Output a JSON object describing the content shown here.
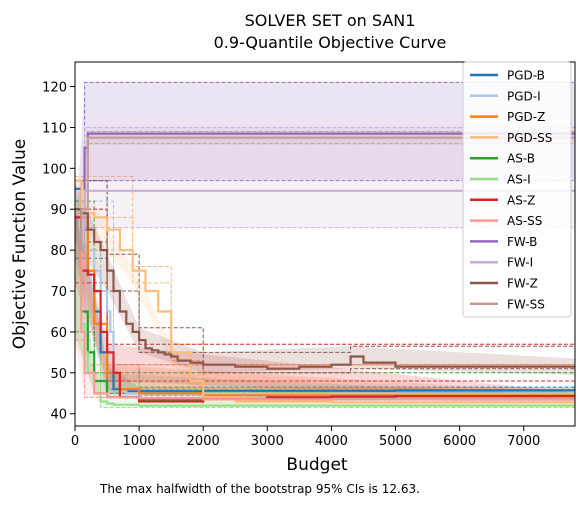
{
  "chart_data": {
    "type": "line",
    "title_line1": "SOLVER SET on SAN1",
    "title_line2": "0.9-Quantile Objective Curve",
    "xlabel": "Budget",
    "ylabel": "Objective Function Value",
    "xlim": [
      0,
      7800
    ],
    "ylim": [
      37,
      126
    ],
    "xticks": [
      0,
      1000,
      2000,
      3000,
      4000,
      5000,
      6000,
      7000
    ],
    "yticks": [
      40,
      50,
      60,
      70,
      80,
      90,
      100,
      110,
      120
    ],
    "grid": false,
    "legend_position": "top-right",
    "footnote": "The max halfwidth of the bootstrap 95% CIs is 12.63.",
    "series": [
      {
        "name": "PGD-B",
        "color": "#1f77b4",
        "x": [
          0,
          100,
          200,
          300,
          400,
          500,
          600,
          800,
          1000,
          2000,
          3000,
          5000,
          7800
        ],
        "y": [
          95,
          85,
          75,
          65,
          55,
          50,
          46,
          45.5,
          45.5,
          45.6,
          45.6,
          45.7,
          45.7
        ],
        "band": [
          [
            0,
            97,
            78
          ],
          [
            500,
            52,
            44
          ],
          [
            1000,
            46.5,
            44.5
          ],
          [
            7800,
            46.5,
            44.8
          ]
        ]
      },
      {
        "name": "PGD-I",
        "color": "#aec7e8",
        "x": [
          0,
          200,
          300,
          400,
          500,
          550,
          600,
          700,
          800,
          1000,
          2000,
          4000,
          7800
        ],
        "y": [
          90,
          80,
          75,
          70,
          65,
          60,
          50,
          46,
          45,
          44.8,
          44.8,
          44.9,
          45
        ],
        "band": [
          [
            0,
            92,
            80
          ],
          [
            600,
            52,
            45
          ],
          [
            1000,
            46,
            43.5
          ],
          [
            7800,
            46,
            44
          ]
        ]
      },
      {
        "name": "PGD-Z",
        "color": "#ff7f0e",
        "x": [
          0,
          200,
          300,
          500,
          700,
          1000,
          2000,
          4000,
          7800
        ],
        "y": [
          88,
          75,
          62,
          50,
          46,
          45,
          44.5,
          44.5,
          44.5
        ],
        "band": [
          [
            0,
            90,
            80
          ],
          [
            500,
            52,
            46
          ],
          [
            7800,
            45.2,
            43.8
          ]
        ]
      },
      {
        "name": "PGD-SS",
        "color": "#ffbb78",
        "x": [
          0,
          100,
          200,
          300,
          500,
          700,
          900,
          1100,
          1300,
          1500,
          1800,
          2000,
          2500,
          4000,
          7800
        ],
        "y": [
          97,
          90,
          89,
          88,
          85,
          80,
          75,
          70,
          65,
          55,
          48,
          44,
          43,
          42.8,
          42.8
        ],
        "band": [
          [
            0,
            98,
            88
          ],
          [
            900,
            76,
            72
          ],
          [
            1500,
            57,
            53
          ],
          [
            2000,
            46,
            42
          ],
          [
            7800,
            43.5,
            42
          ]
        ]
      },
      {
        "name": "AS-B",
        "color": "#2ca02c",
        "x": [
          0,
          100,
          200,
          300,
          500,
          1000,
          2000,
          4000,
          7800
        ],
        "y": [
          90,
          65,
          55,
          48,
          44,
          43.5,
          43.5,
          43.5,
          43.5
        ],
        "band": [
          [
            0,
            92,
            60
          ],
          [
            300,
            50,
            45
          ],
          [
            7800,
            44.5,
            42.5
          ]
        ]
      },
      {
        "name": "AS-I",
        "color": "#98df8a",
        "x": [
          0,
          100,
          150,
          200,
          300,
          400,
          500,
          600,
          1000,
          2000,
          4000,
          7800
        ],
        "y": [
          80,
          62,
          55,
          50,
          45,
          43,
          42.5,
          42.2,
          42,
          42,
          42,
          42
        ],
        "band": [
          [
            0,
            82,
            58
          ],
          [
            400,
            44,
            41.5
          ],
          [
            7800,
            42.6,
            41.5
          ]
        ]
      },
      {
        "name": "AS-Z",
        "color": "#d62728",
        "x": [
          0,
          100,
          200,
          300,
          400,
          500,
          600,
          700,
          1000,
          2000,
          3000,
          4000,
          5000,
          7800
        ],
        "y": [
          88,
          75,
          74,
          70,
          60,
          55,
          50,
          44,
          43,
          43.5,
          44,
          44.2,
          44.3,
          44.3
        ],
        "band": [
          [
            0,
            90,
            72
          ],
          [
            500,
            57,
            48
          ],
          [
            7800,
            45.2,
            43.3
          ]
        ]
      },
      {
        "name": "AS-SS",
        "color": "#ff9896",
        "x": [
          0,
          100,
          150,
          300,
          500,
          1000,
          2000,
          4000,
          7800
        ],
        "y": [
          80,
          60,
          50,
          45,
          44,
          43.8,
          43.5,
          43.5,
          43.5
        ],
        "band": [
          [
            0,
            82,
            58
          ],
          [
            150,
            52,
            44
          ],
          [
            7800,
            44.2,
            42.8
          ]
        ]
      },
      {
        "name": "FW-B",
        "color": "#9467bd",
        "x": [
          0,
          100,
          150,
          200,
          7800
        ],
        "y": [
          80,
          85,
          105,
          108.5,
          108.5
        ],
        "band": [
          [
            0,
            82,
            80
          ],
          [
            150,
            121,
            97
          ],
          [
            7800,
            121,
            97
          ]
        ]
      },
      {
        "name": "FW-I",
        "color": "#c5b0d5",
        "x": [
          0,
          100,
          150,
          7800
        ],
        "y": [
          80,
          85,
          94.5,
          94.5
        ],
        "band": [
          [
            0,
            82,
            80
          ],
          [
            150,
            110,
            85.5
          ],
          [
            7800,
            110,
            85.5
          ]
        ]
      },
      {
        "name": "FW-Z",
        "color": "#8c564b",
        "x": [
          0,
          100,
          200,
          300,
          400,
          500,
          600,
          700,
          800,
          900,
          1000,
          1100,
          1200,
          1300,
          1400,
          1500,
          1600,
          1800,
          2000,
          2500,
          3000,
          3500,
          4000,
          4200,
          4300,
          4500,
          5000,
          6000,
          7000,
          7800
        ],
        "y": [
          90,
          89,
          85,
          82,
          80,
          75,
          70,
          65,
          62,
          60,
          58,
          56,
          55.5,
          55,
          54.5,
          54,
          53,
          52.5,
          52,
          51.5,
          51,
          51.5,
          52,
          52,
          54,
          52.5,
          51.5,
          51.5,
          51.5,
          51.5
        ],
        "band": [
          [
            0,
            97,
            82
          ],
          [
            500,
            79,
            70
          ],
          [
            1000,
            61,
            55
          ],
          [
            2000,
            55,
            50
          ],
          [
            4300,
            56.5,
            51
          ],
          [
            7800,
            53.5,
            49.5
          ]
        ]
      },
      {
        "name": "FW-SS",
        "color": "#c49c94",
        "x": [
          0,
          100,
          200,
          1500,
          7800
        ],
        "y": [
          80,
          90,
          107.5,
          107.5,
          107.5
        ],
        "band": [
          [
            0,
            82,
            80
          ],
          [
            200,
            109,
            106
          ],
          [
            7800,
            109,
            106
          ]
        ]
      }
    ]
  }
}
